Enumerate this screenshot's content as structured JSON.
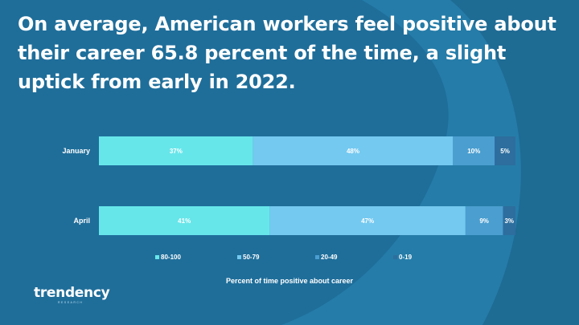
{
  "title": "On average, American workers feel positive about their career 65.8 percent of the time, a slight uptick from early in 2022.",
  "logo": "trendency",
  "logo_sub": "RESEARCH",
  "colors": {
    "background": "#1f6e9a",
    "background_light": "#2a88b4",
    "s80": "#67e6ea",
    "s50": "#74c9f0",
    "s20": "#4a9ed0",
    "s0": "#2d6e9e",
    "text": "#ffffff"
  },
  "chart_data": {
    "type": "bar",
    "orientation": "horizontal",
    "stacked": true,
    "normalized": true,
    "categories": [
      "January",
      "April"
    ],
    "series": [
      {
        "name": "80-100",
        "values": [
          37,
          41
        ],
        "labels": [
          "37%",
          "41%"
        ]
      },
      {
        "name": "50-79",
        "values": [
          48,
          47
        ],
        "labels": [
          "48%",
          "47%"
        ]
      },
      {
        "name": "20-49",
        "values": [
          10,
          9
        ],
        "labels": [
          "10%",
          "9%"
        ]
      },
      {
        "name": "0-19",
        "values": [
          5,
          3
        ],
        "labels": [
          "5%",
          "3%"
        ]
      }
    ],
    "xlabel": "Percent of time positive about career",
    "legend_position": "bottom"
  }
}
